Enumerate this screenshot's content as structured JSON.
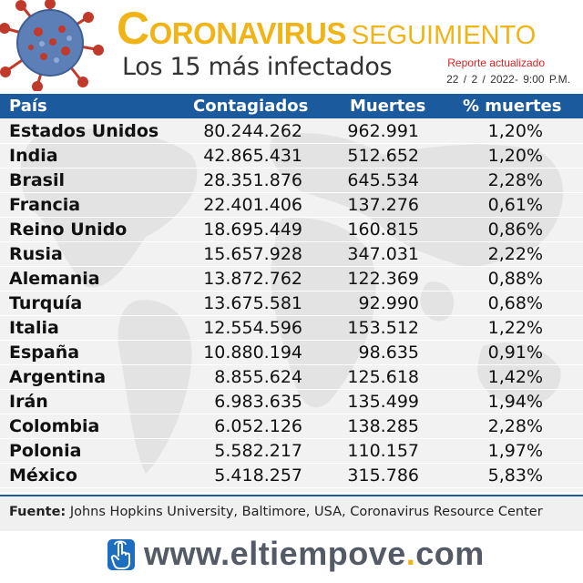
{
  "header": {
    "title_first_letter": "C",
    "title_rest": "ORONAVIRUS",
    "title_suffix": "SEGUIMIENTO",
    "subtitle": "Los 15 más infectados",
    "report_label": "Reporte actualizado",
    "report_date": "22 / 2 / 2022-",
    "report_time": "9:00 P.M."
  },
  "table": {
    "columns": [
      "País",
      "Contagiados",
      "Muertes",
      "% muertes"
    ],
    "rows": [
      {
        "country": "Estados Unidos",
        "cases": "80.244.262",
        "deaths": "962.991",
        "pct": "1,20%"
      },
      {
        "country": "India",
        "cases": "42.865.431",
        "deaths": "512.652",
        "pct": "1,20%"
      },
      {
        "country": "Brasil",
        "cases": "28.351.876",
        "deaths": "645.534",
        "pct": "2,28%"
      },
      {
        "country": "Francia",
        "cases": "22.401.406",
        "deaths": "137.276",
        "pct": "0,61%"
      },
      {
        "country": "Reino Unido",
        "cases": "18.695.449",
        "deaths": "160.815",
        "pct": "0,86%"
      },
      {
        "country": "Rusia",
        "cases": "15.657.928",
        "deaths": "347.031",
        "pct": "2,22%"
      },
      {
        "country": "Alemania",
        "cases": "13.872.762",
        "deaths": "122.369",
        "pct": "0,88%"
      },
      {
        "country": "Turquía",
        "cases": "13.675.581",
        "deaths": "92.990",
        "pct": "0,68%"
      },
      {
        "country": "Italia",
        "cases": "12.554.596",
        "deaths": "153.512",
        "pct": "1,22%"
      },
      {
        "country": "España",
        "cases": "10.880.194",
        "deaths": "98.635",
        "pct": "0,91%"
      },
      {
        "country": "Argentina",
        "cases": "8.855.624",
        "deaths": "125.618",
        "pct": "1,42%"
      },
      {
        "country": "Irán",
        "cases": "6.983.635",
        "deaths": "135.499",
        "pct": "1,94%"
      },
      {
        "country": "Colombia",
        "cases": "6.052.126",
        "deaths": "138.285",
        "pct": "2,28%"
      },
      {
        "country": "Polonia",
        "cases": "5.582.217",
        "deaths": "110.157",
        "pct": "1,97%"
      },
      {
        "country": "México",
        "cases": "5.418.257",
        "deaths": "315.786",
        "pct": "5,83%"
      }
    ]
  },
  "source": {
    "label": "Fuente:",
    "text": "Johns Hopkins University, Baltimore, USA, Coronavirus Resource Center"
  },
  "footer": {
    "site_prefix": "www.",
    "site_name": "eltiempove",
    "site_dot": ".",
    "site_tld": "com",
    "icon": "pointer-hand-icon"
  },
  "colors": {
    "title_yellow": "#f1b416",
    "header_blue": "#1c5a9e",
    "report_red": "#e02020",
    "virus_red": "#c0392b",
    "virus_blue": "#5c7fb8"
  }
}
